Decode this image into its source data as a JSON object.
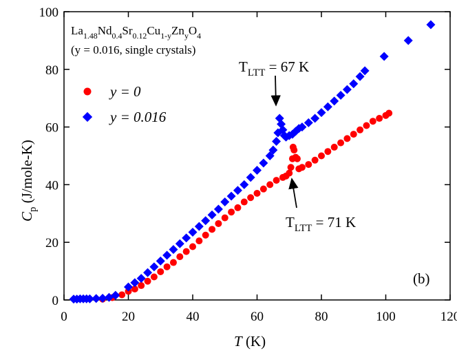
{
  "chart_data": {
    "type": "scatter",
    "formula": [
      "La",
      "1.48",
      "Nd",
      "0.4",
      "Sr",
      "0.12",
      "Cu",
      "1-y",
      "Zn",
      "y",
      "O",
      "4"
    ],
    "subtitle": "(y = 0.016, single crystals)",
    "transitions": [
      {
        "symbol": "T",
        "subscript": "LTT",
        "text": " = 67 K"
      },
      {
        "symbol": "T",
        "subscript": "LTT",
        "text": " = 71 K"
      }
    ],
    "panel_label": "(b)",
    "y_label": {
      "symbol": "C",
      "subscript": "p",
      "text": " (J/mole-K)"
    },
    "x_label": {
      "symbol": "T",
      "text": " (K)"
    },
    "xlim": [
      0,
      120
    ],
    "ylim": [
      0,
      100
    ],
    "xticks": [
      0,
      20,
      40,
      60,
      80,
      100,
      120
    ],
    "yticks": [
      0,
      20,
      40,
      60,
      80,
      100
    ],
    "legend": "upper left",
    "series": [
      {
        "name": "y = 0",
        "color": "#ff0000",
        "marker": "circle",
        "x": [
          12,
          15,
          18,
          20,
          22,
          24,
          26,
          28,
          30,
          32,
          34,
          36,
          38,
          40,
          42,
          44,
          46,
          48,
          50,
          52,
          54,
          56,
          58,
          60,
          62,
          64,
          66,
          68,
          69,
          70,
          70.5,
          71,
          71.2,
          71.5,
          72,
          72.5,
          73,
          74,
          76,
          78,
          80,
          82,
          84,
          86,
          88,
          90,
          92,
          94,
          96,
          98,
          100,
          101
        ],
        "values": [
          0.3,
          0.8,
          1.8,
          3,
          3.8,
          5,
          6.5,
          8,
          9.8,
          11.5,
          13,
          15,
          16.8,
          18.5,
          20.5,
          22.5,
          24.5,
          26.5,
          28.5,
          30.5,
          32,
          34,
          35.5,
          37,
          38.5,
          40,
          41.5,
          42.5,
          43,
          44,
          46,
          49,
          53,
          52,
          49.5,
          49,
          45.5,
          46,
          47,
          48.5,
          50,
          51.5,
          53,
          54.5,
          56,
          57.5,
          59,
          60.5,
          62,
          63,
          64,
          64.8
        ]
      },
      {
        "name": "y = 0.016",
        "color": "#0000ff",
        "marker": "diamond",
        "x": [
          3,
          4,
          5,
          6,
          7,
          8,
          10,
          12,
          14,
          16,
          20,
          22,
          24,
          26,
          28,
          30,
          32,
          34,
          36,
          38,
          40,
          42,
          44,
          46,
          48,
          50,
          52,
          54,
          56,
          58,
          60,
          62,
          64,
          65,
          66,
          66.5,
          67,
          67.5,
          68,
          68.5,
          69,
          70,
          71,
          72,
          73,
          74,
          76,
          78,
          80,
          82,
          84,
          86,
          88,
          90,
          92,
          93.5,
          99.5,
          107,
          114
        ],
        "values": [
          0.3,
          0.3,
          0.4,
          0.4,
          0.4,
          0.4,
          0.5,
          0.6,
          0.9,
          1.6,
          4.5,
          6,
          7.5,
          9.5,
          11.5,
          13.5,
          15.5,
          17.5,
          19.5,
          21.5,
          23.5,
          25.5,
          27.5,
          29.5,
          31.5,
          34,
          36,
          38,
          40,
          42.5,
          45,
          47.5,
          50,
          52,
          55,
          58,
          63,
          61,
          59,
          57,
          56.5,
          57,
          57.5,
          58.5,
          59.5,
          60,
          61.5,
          63,
          65,
          67,
          69,
          71,
          73,
          75,
          77.5,
          79.5,
          84.5,
          90,
          95.5
        ]
      }
    ]
  }
}
